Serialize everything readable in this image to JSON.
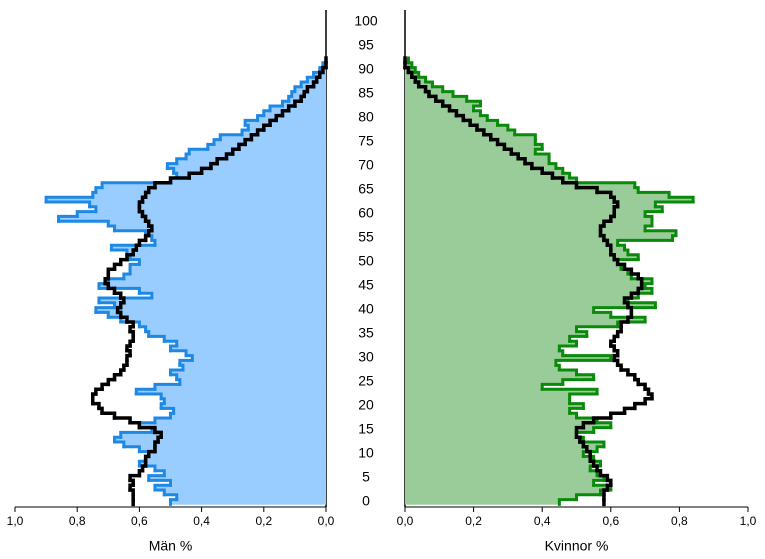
{
  "chart_data": {
    "type": "pyramid",
    "y": [
      0,
      1,
      2,
      3,
      4,
      5,
      6,
      7,
      8,
      9,
      10,
      11,
      12,
      13,
      14,
      15,
      16,
      17,
      18,
      19,
      20,
      21,
      22,
      23,
      24,
      25,
      26,
      27,
      28,
      29,
      30,
      31,
      32,
      33,
      34,
      35,
      36,
      37,
      38,
      39,
      40,
      41,
      42,
      43,
      44,
      45,
      46,
      47,
      48,
      49,
      50,
      51,
      52,
      53,
      54,
      55,
      56,
      57,
      58,
      59,
      60,
      61,
      62,
      63,
      64,
      65,
      66,
      67,
      68,
      69,
      70,
      71,
      72,
      73,
      74,
      75,
      76,
      77,
      78,
      79,
      80,
      81,
      82,
      83,
      84,
      85,
      86,
      87,
      88,
      89,
      90,
      91,
      92
    ],
    "ylim": [
      0,
      100
    ],
    "yticks": [
      0,
      5,
      10,
      15,
      20,
      25,
      30,
      35,
      40,
      45,
      50,
      55,
      60,
      65,
      70,
      75,
      80,
      85,
      90,
      95,
      100
    ],
    "panels": [
      {
        "xlabel": "Män %",
        "xlim": [
          1,
          0
        ],
        "xticks": [
          {
            "value": 1,
            "label": "1,0"
          },
          {
            "value": 0.8,
            "label": "0,8"
          },
          {
            "value": 0.6,
            "label": "0,6"
          },
          {
            "value": 0.4,
            "label": "0,4"
          },
          {
            "value": 0.2,
            "label": "0,2"
          },
          {
            "value": 0,
            "label": "0,0"
          }
        ],
        "series": [
          {
            "color": "#1e88e5",
            "fill": "#99ccff",
            "values": [
              0.5,
              0.48,
              0.52,
              0.55,
              0.5,
              0.57,
              0.52,
              0.55,
              0.6,
              0.58,
              0.57,
              0.6,
              0.65,
              0.68,
              0.66,
              0.56,
              0.6,
              0.55,
              0.5,
              0.49,
              0.53,
              0.52,
              0.53,
              0.61,
              0.55,
              0.47,
              0.48,
              0.5,
              0.46,
              0.47,
              0.43,
              0.45,
              0.5,
              0.48,
              0.52,
              0.57,
              0.58,
              0.6,
              0.66,
              0.7,
              0.74,
              0.68,
              0.73,
              0.56,
              0.6,
              0.73,
              0.7,
              0.65,
              0.63,
              0.63,
              0.6,
              0.63,
              0.64,
              0.69,
              0.55,
              0.56,
              0.58,
              0.68,
              0.7,
              0.86,
              0.8,
              0.74,
              0.76,
              0.9,
              0.75,
              0.74,
              0.72,
              0.5,
              0.48,
              0.49,
              0.51,
              0.48,
              0.45,
              0.44,
              0.38,
              0.36,
              0.34,
              0.27,
              0.25,
              0.26,
              0.22,
              0.2,
              0.18,
              0.14,
              0.12,
              0.11,
              0.1,
              0.08,
              0.06,
              0.04,
              0.02,
              0.01,
              0.0
            ]
          },
          {
            "color": "#000000",
            "values": [
              0.62,
              0.62,
              0.62,
              0.63,
              0.62,
              0.63,
              0.6,
              0.59,
              0.58,
              0.58,
              0.57,
              0.55,
              0.55,
              0.54,
              0.53,
              0.55,
              0.6,
              0.63,
              0.68,
              0.72,
              0.73,
              0.75,
              0.75,
              0.74,
              0.72,
              0.7,
              0.68,
              0.66,
              0.65,
              0.64,
              0.64,
              0.63,
              0.64,
              0.63,
              0.62,
              0.62,
              0.63,
              0.62,
              0.64,
              0.66,
              0.67,
              0.66,
              0.65,
              0.66,
              0.68,
              0.7,
              0.71,
              0.7,
              0.7,
              0.68,
              0.66,
              0.64,
              0.62,
              0.61,
              0.6,
              0.58,
              0.57,
              0.56,
              0.57,
              0.58,
              0.59,
              0.6,
              0.6,
              0.59,
              0.58,
              0.57,
              0.55,
              0.5,
              0.44,
              0.4,
              0.37,
              0.35,
              0.32,
              0.3,
              0.28,
              0.26,
              0.24,
              0.22,
              0.2,
              0.18,
              0.16,
              0.14,
              0.12,
              0.1,
              0.08,
              0.07,
              0.06,
              0.04,
              0.03,
              0.02,
              0.01,
              0.0,
              0.0
            ]
          }
        ]
      },
      {
        "xlabel": "Kvinnor %",
        "xlim": [
          0,
          1
        ],
        "xticks": [
          {
            "value": 0,
            "label": "0,0"
          },
          {
            "value": 0.2,
            "label": "0,2"
          },
          {
            "value": 0.4,
            "label": "0,4"
          },
          {
            "value": 0.6,
            "label": "0,6"
          },
          {
            "value": 0.8,
            "label": "0,8"
          },
          {
            "value": 1,
            "label": "1,0"
          }
        ],
        "series": [
          {
            "color": "#0a8a0a",
            "fill": "#99cc99",
            "values": [
              0.45,
              0.5,
              0.57,
              0.6,
              0.55,
              0.58,
              0.56,
              0.54,
              0.57,
              0.55,
              0.52,
              0.56,
              0.58,
              0.52,
              0.5,
              0.55,
              0.6,
              0.56,
              0.5,
              0.48,
              0.52,
              0.48,
              0.48,
              0.56,
              0.4,
              0.46,
              0.55,
              0.5,
              0.45,
              0.44,
              0.6,
              0.46,
              0.45,
              0.5,
              0.48,
              0.53,
              0.5,
              0.62,
              0.7,
              0.6,
              0.55,
              0.73,
              0.65,
              0.68,
              0.72,
              0.7,
              0.72,
              0.66,
              0.65,
              0.63,
              0.62,
              0.68,
              0.65,
              0.64,
              0.62,
              0.78,
              0.79,
              0.7,
              0.72,
              0.72,
              0.7,
              0.75,
              0.73,
              0.84,
              0.77,
              0.68,
              0.67,
              0.5,
              0.48,
              0.46,
              0.44,
              0.42,
              0.42,
              0.38,
              0.4,
              0.38,
              0.38,
              0.32,
              0.3,
              0.27,
              0.24,
              0.22,
              0.2,
              0.22,
              0.18,
              0.14,
              0.11,
              0.08,
              0.06,
              0.04,
              0.03,
              0.02,
              0.01
            ]
          },
          {
            "color": "#000000",
            "values": [
              0.58,
              0.58,
              0.58,
              0.59,
              0.6,
              0.59,
              0.57,
              0.56,
              0.55,
              0.54,
              0.54,
              0.53,
              0.52,
              0.51,
              0.5,
              0.5,
              0.52,
              0.55,
              0.6,
              0.64,
              0.67,
              0.7,
              0.72,
              0.71,
              0.7,
              0.68,
              0.67,
              0.65,
              0.63,
              0.62,
              0.61,
              0.62,
              0.61,
              0.6,
              0.61,
              0.62,
              0.63,
              0.63,
              0.65,
              0.66,
              0.66,
              0.65,
              0.64,
              0.66,
              0.68,
              0.69,
              0.69,
              0.68,
              0.66,
              0.64,
              0.62,
              0.61,
              0.6,
              0.6,
              0.59,
              0.58,
              0.57,
              0.57,
              0.58,
              0.6,
              0.61,
              0.61,
              0.62,
              0.61,
              0.6,
              0.56,
              0.5,
              0.46,
              0.43,
              0.4,
              0.37,
              0.35,
              0.33,
              0.31,
              0.29,
              0.27,
              0.25,
              0.23,
              0.21,
              0.19,
              0.17,
              0.15,
              0.13,
              0.11,
              0.09,
              0.07,
              0.06,
              0.04,
              0.03,
              0.02,
              0.01,
              0.0,
              0.0
            ]
          }
        ]
      }
    ]
  }
}
